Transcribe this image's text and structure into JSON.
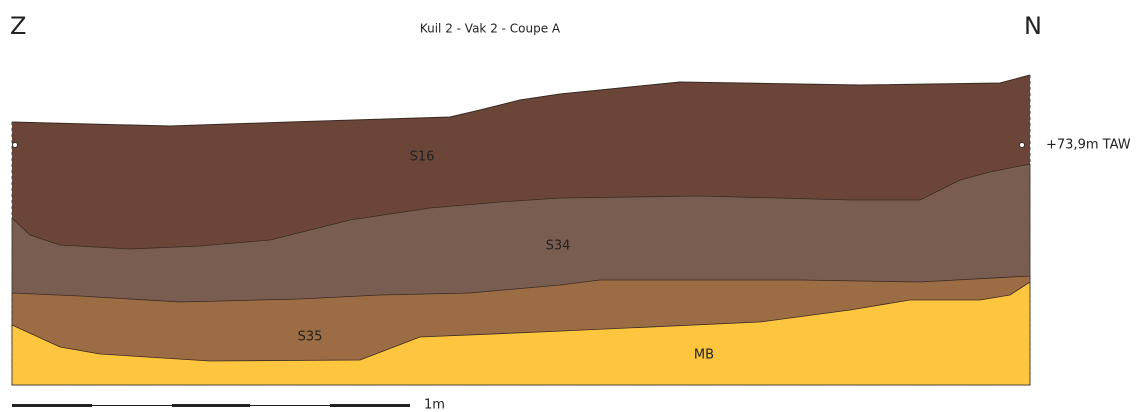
{
  "header": {
    "left": "Z",
    "title": "Kuil 2 - Vak 2 - Coupe A",
    "right": "N"
  },
  "layers": [
    {
      "label": "S16"
    },
    {
      "label": "S34"
    },
    {
      "label": "S35"
    },
    {
      "label": "MB"
    }
  ],
  "level": "+73,9m TAW",
  "scale": "1m"
}
